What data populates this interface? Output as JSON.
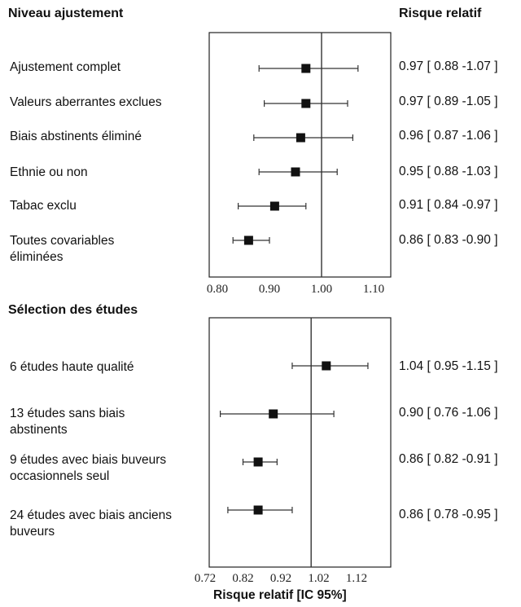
{
  "chart_data": [
    {
      "type": "forest",
      "section_title": "Niveau ajustement",
      "ci_column_title": "Risque relatif",
      "reference_line": 1.0,
      "xlim": [
        0.8,
        1.11
      ],
      "ticks": [
        "0.80",
        "0.90",
        "1.00",
        "1.10"
      ],
      "tick_values": [
        0.8,
        0.9,
        1.0,
        1.1
      ],
      "rows": [
        {
          "label": "Ajustement complet",
          "rr": 0.97,
          "low": 0.88,
          "high": 1.07,
          "text": "0.97 [ 0.88 -1.07 ]"
        },
        {
          "label": "Valeurs aberrantes exclues",
          "rr": 0.97,
          "low": 0.89,
          "high": 1.05,
          "text": "0.97 [ 0.89 -1.05 ]"
        },
        {
          "label": "Biais abstinents éliminé",
          "rr": 0.96,
          "low": 0.87,
          "high": 1.06,
          "text": "0.96 [ 0.87 -1.06 ]"
        },
        {
          "label": "Ethnie ou non",
          "rr": 0.95,
          "low": 0.88,
          "high": 1.03,
          "text": "0.95 [ 0.88 -1.03 ]"
        },
        {
          "label": "Tabac exclu",
          "rr": 0.91,
          "low": 0.84,
          "high": 0.97,
          "text": "0.91 [ 0.84 -0.97 ]"
        },
        {
          "label": "Toutes covariables\néliminées",
          "rr": 0.86,
          "low": 0.83,
          "high": 0.9,
          "text": "0.86 [ 0.83 -0.90 ]"
        }
      ]
    },
    {
      "type": "forest",
      "section_title": "Sélection des études",
      "reference_line": 1.0,
      "xlim": [
        0.72,
        1.16
      ],
      "ticks": [
        "0.72",
        "0.82",
        "0.92",
        "1.02",
        "1.12"
      ],
      "tick_values": [
        0.72,
        0.82,
        0.92,
        1.02,
        1.12
      ],
      "xlabel": "Risque relatif  [IC 95%]",
      "rows": [
        {
          "label": "6 études haute qualité",
          "rr": 1.04,
          "low": 0.95,
          "high": 1.15,
          "text": "1.04 [ 0.95 -1.15 ]"
        },
        {
          "label": "13 études sans biais\nabstinents",
          "rr": 0.9,
          "low": 0.76,
          "high": 1.06,
          "text": "0.90 [ 0.76 -1.06 ]"
        },
        {
          "label": "9 études avec biais buveurs\noccasionnels seul",
          "rr": 0.86,
          "low": 0.82,
          "high": 0.91,
          "text": "0.86 [ 0.82 -0.91 ]"
        },
        {
          "label": "24 études avec biais anciens\nbuveurs",
          "rr": 0.86,
          "low": 0.78,
          "high": 0.95,
          "text": "0.86 [ 0.78 -0.95 ]"
        }
      ]
    }
  ]
}
